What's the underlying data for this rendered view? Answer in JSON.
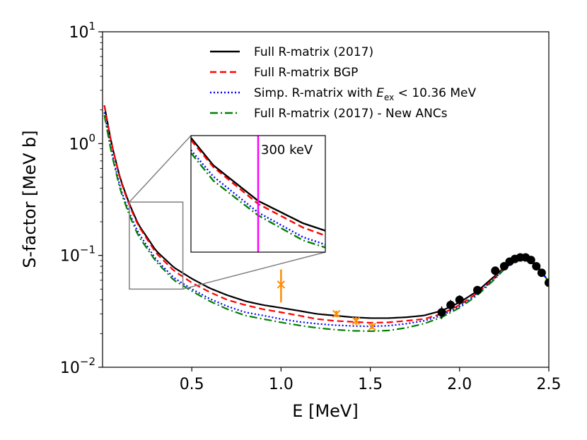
{
  "chart_data": {
    "type": "line",
    "title": "",
    "xlabel": "E [MeV]",
    "ylabel": "S-factor [MeV b]",
    "xscale": "linear",
    "yscale": "log",
    "xlim": [
      0.0,
      2.5
    ],
    "ylim": [
      0.01,
      10
    ],
    "x_ticks": [
      0.5,
      1.0,
      1.5,
      2.0,
      2.5
    ],
    "x_tick_labels": [
      "0.5",
      "1.0",
      "1.5",
      "2.0",
      "2.5"
    ],
    "y_ticks": [
      {
        "value": 0.01,
        "base": "10",
        "exp": "−2"
      },
      {
        "value": 0.1,
        "base": "10",
        "exp": "−1"
      },
      {
        "value": 1,
        "base": "10",
        "exp": "0"
      },
      {
        "value": 10,
        "base": "10",
        "exp": "1"
      }
    ],
    "legend": {
      "placement": "upper-center",
      "entries": [
        {
          "label_parts": [
            "Full R-matrix (2017)"
          ],
          "color": "#000000",
          "style": "solid"
        },
        {
          "label_parts": [
            "Full R-matrix BGP"
          ],
          "color": "#ff0000",
          "style": "dashed"
        },
        {
          "label_parts": [
            "Simp. R-matrix with ",
            "E",
            "ex",
            " < 10.36 MeV"
          ],
          "color": "#0000ff",
          "style": "dotted"
        },
        {
          "label_parts": [
            "Full R-matrix (2017) - New ANCs"
          ],
          "color": "#008000",
          "style": "dashdot"
        }
      ]
    },
    "series": [
      {
        "name": "Full R-matrix (2017)",
        "color": "#000000",
        "style": "solid",
        "x": [
          0.01,
          0.05,
          0.1,
          0.15,
          0.2,
          0.3,
          0.4,
          0.5,
          0.6,
          0.7,
          0.8,
          0.9,
          1.0,
          1.1,
          1.2,
          1.3,
          1.4,
          1.5,
          1.6,
          1.7,
          1.8,
          1.9,
          2.0,
          2.1,
          2.2,
          2.25,
          2.3,
          2.35,
          2.4,
          2.45,
          2.5
        ],
        "y": [
          2.2,
          1.0,
          0.48,
          0.29,
          0.19,
          0.11,
          0.078,
          0.062,
          0.051,
          0.044,
          0.039,
          0.036,
          0.034,
          0.032,
          0.03,
          0.029,
          0.028,
          0.0275,
          0.0275,
          0.028,
          0.029,
          0.032,
          0.038,
          0.048,
          0.066,
          0.078,
          0.089,
          0.095,
          0.09,
          0.075,
          0.058
        ]
      },
      {
        "name": "Full R-matrix BGP",
        "color": "#ff0000",
        "style": "dashed",
        "x": [
          0.01,
          0.05,
          0.1,
          0.15,
          0.2,
          0.3,
          0.4,
          0.5,
          0.6,
          0.7,
          0.8,
          0.9,
          1.0,
          1.1,
          1.2,
          1.3,
          1.4,
          1.5,
          1.6,
          1.7,
          1.8,
          1.9,
          2.0,
          2.1,
          2.2,
          2.25,
          2.3,
          2.35,
          2.4,
          2.45,
          2.5
        ],
        "y": [
          2.2,
          1.0,
          0.47,
          0.28,
          0.185,
          0.105,
          0.073,
          0.057,
          0.047,
          0.04,
          0.036,
          0.033,
          0.031,
          0.029,
          0.027,
          0.026,
          0.0255,
          0.025,
          0.0252,
          0.026,
          0.027,
          0.03,
          0.036,
          0.046,
          0.064,
          0.077,
          0.088,
          0.095,
          0.09,
          0.075,
          0.058
        ]
      },
      {
        "name": "Simp. R-matrix with Eex < 10.36 MeV",
        "color": "#0000ff",
        "style": "dotted",
        "x": [
          0.01,
          0.05,
          0.1,
          0.15,
          0.2,
          0.3,
          0.4,
          0.5,
          0.6,
          0.7,
          0.8,
          0.9,
          1.0,
          1.1,
          1.2,
          1.3,
          1.4,
          1.5,
          1.6,
          1.7,
          1.8,
          1.9,
          2.0,
          2.1,
          2.2,
          2.25,
          2.3,
          2.35,
          2.4,
          2.45,
          2.5
        ],
        "y": [
          1.9,
          0.85,
          0.4,
          0.24,
          0.16,
          0.092,
          0.063,
          0.05,
          0.041,
          0.035,
          0.031,
          0.029,
          0.027,
          0.0255,
          0.0245,
          0.0238,
          0.0234,
          0.0232,
          0.0235,
          0.0245,
          0.026,
          0.029,
          0.035,
          0.045,
          0.063,
          0.076,
          0.087,
          0.094,
          0.09,
          0.075,
          0.058
        ]
      },
      {
        "name": "Full R-matrix (2017) - New ANCs",
        "color": "#008000",
        "style": "dashdot",
        "x": [
          0.01,
          0.05,
          0.1,
          0.15,
          0.2,
          0.3,
          0.4,
          0.5,
          0.6,
          0.7,
          0.8,
          0.9,
          1.0,
          1.1,
          1.2,
          1.3,
          1.4,
          1.5,
          1.6,
          1.7,
          1.8,
          1.9,
          2.0,
          2.1,
          2.2,
          2.25,
          2.3,
          2.35,
          2.4,
          2.45,
          2.5
        ],
        "y": [
          1.8,
          0.82,
          0.38,
          0.23,
          0.15,
          0.088,
          0.06,
          0.048,
          0.039,
          0.033,
          0.029,
          0.027,
          0.0252,
          0.0237,
          0.0225,
          0.0217,
          0.0212,
          0.021,
          0.0213,
          0.0225,
          0.0245,
          0.028,
          0.034,
          0.044,
          0.062,
          0.075,
          0.086,
          0.094,
          0.09,
          0.075,
          0.058
        ]
      }
    ],
    "data_black": {
      "name": "black data",
      "color": "#000000",
      "marker": "circle",
      "points": [
        {
          "x": 1.9,
          "y": 0.031,
          "err": 0.004
        },
        {
          "x": 1.95,
          "y": 0.036,
          "err": 0.004
        },
        {
          "x": 2.0,
          "y": 0.04,
          "err": 0.004
        },
        {
          "x": 2.1,
          "y": 0.049,
          "err": 0.003
        },
        {
          "x": 2.2,
          "y": 0.073,
          "err": 0.003
        },
        {
          "x": 2.25,
          "y": 0.08,
          "err": 0.003
        },
        {
          "x": 2.28,
          "y": 0.088,
          "err": 0.003
        },
        {
          "x": 2.31,
          "y": 0.093,
          "err": 0.003
        },
        {
          "x": 2.34,
          "y": 0.096,
          "err": 0.003
        },
        {
          "x": 2.37,
          "y": 0.096,
          "err": 0.003
        },
        {
          "x": 2.4,
          "y": 0.091,
          "err": 0.003
        },
        {
          "x": 2.43,
          "y": 0.08,
          "err": 0.003
        },
        {
          "x": 2.46,
          "y": 0.07,
          "err": 0.003
        },
        {
          "x": 2.5,
          "y": 0.057,
          "err": 0.003
        }
      ]
    },
    "data_orange": {
      "name": "orange data",
      "color": "#ff8c00",
      "marker": "x",
      "points": [
        {
          "x": 1.0,
          "y": 0.055,
          "lo": 0.038,
          "hi": 0.075
        },
        {
          "x": 1.31,
          "y": 0.03,
          "lo": 0.028,
          "hi": 0.032
        },
        {
          "x": 1.42,
          "y": 0.026,
          "lo": 0.024,
          "hi": 0.028
        },
        {
          "x": 1.51,
          "y": 0.023,
          "lo": 0.022,
          "hi": 0.025
        }
      ]
    },
    "zoom_region": {
      "x": [
        0.15,
        0.45
      ],
      "y": [
        0.05,
        0.3
      ]
    },
    "inset": {
      "placement": "upper-center",
      "xlim": [
        0.15,
        0.45
      ],
      "ylim": [
        0.05,
        0.3
      ],
      "annotation": {
        "text": "300 keV",
        "x": 0.3,
        "color": "#ff00ff"
      }
    }
  }
}
